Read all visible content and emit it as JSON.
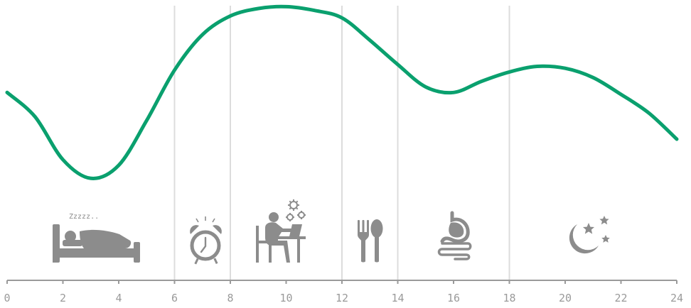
{
  "chart_data": {
    "type": "line",
    "title": "",
    "xlabel": "",
    "ylabel": "",
    "xlim": [
      0,
      24
    ],
    "x_ticks": [
      0,
      2,
      4,
      6,
      8,
      10,
      12,
      14,
      16,
      18,
      20,
      22,
      24
    ],
    "gridlines_x": [
      6,
      8,
      12,
      14,
      18
    ],
    "grid": "vertical gridlines at 6, 8, 12, 14, 18",
    "y_axis": "not shown (relative level)",
    "ylim": [
      0,
      1
    ],
    "series": [
      {
        "color": "#0aa06e",
        "x": [
          0,
          1,
          2,
          3,
          4,
          5,
          6,
          7,
          8,
          9,
          10,
          11,
          12,
          13,
          14,
          15,
          16,
          17,
          18,
          19,
          20,
          21,
          22,
          23,
          24
        ],
        "y": [
          0.55,
          0.42,
          0.19,
          0.09,
          0.16,
          0.4,
          0.67,
          0.86,
          0.96,
          1.0,
          1.01,
          0.99,
          0.95,
          0.83,
          0.7,
          0.58,
          0.55,
          0.61,
          0.66,
          0.69,
          0.68,
          0.63,
          0.54,
          0.44,
          0.3
        ]
      }
    ],
    "icons": [
      {
        "name": "sleeping-in-bed-icon",
        "x_start": 1.6,
        "x_end": 4.8,
        "zzz": "Zzzzz.."
      },
      {
        "name": "alarm-clock-icon",
        "x_start": 6.5,
        "x_end": 7.8
      },
      {
        "name": "person-at-computer-gears-icon",
        "x_start": 9.0,
        "x_end": 10.9
      },
      {
        "name": "fork-and-spoon-icon",
        "x_start": 12.3,
        "x_end": 13.6
      },
      {
        "name": "stomach-icon",
        "x_start": 15.2,
        "x_end": 16.7
      },
      {
        "name": "moon-and-stars-icon",
        "x_start": 20.0,
        "x_end": 21.6
      }
    ],
    "colors": {
      "line": "#0aa06e",
      "icons": "#8c8c8c",
      "grid": "#dcdcdc",
      "axis": "#9a9a9a",
      "tick_labels": "#9a9a9a"
    }
  }
}
